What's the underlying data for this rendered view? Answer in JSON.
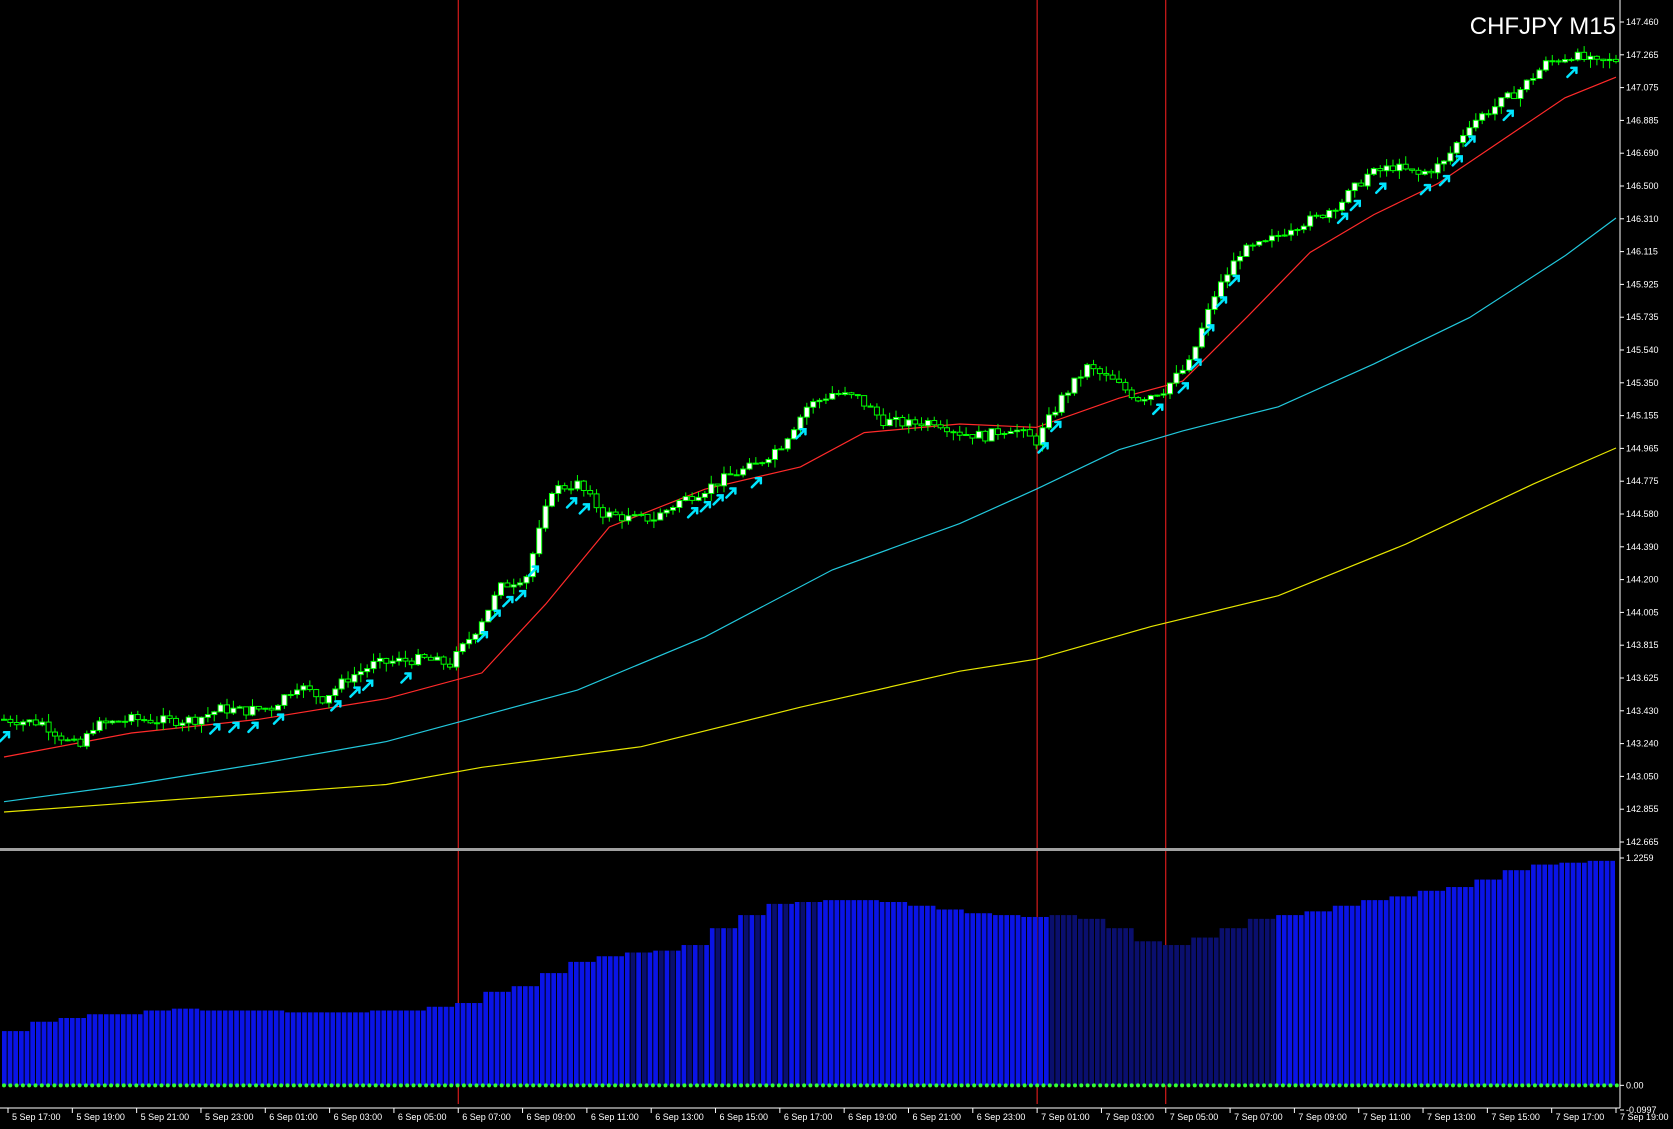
{
  "window": {
    "symbol_label": "CHFJPY M15"
  },
  "colors": {
    "background": "#000000",
    "axis": "#ffffff",
    "bull_candle": "#00ff00",
    "bull_body": "#ffffff",
    "bear_body": "#000000",
    "ma_fast": "#ff2a2a",
    "ma_mid": "#22c8dc",
    "ma_slow": "#e6e600",
    "arrow": "#00e5ff",
    "vline": "#ff2020",
    "histogram": "#0a14e6",
    "histogram_dim": "#0a0f6e",
    "zero_dots": "#33ff33",
    "separator": "#a0a0a0"
  },
  "chart_data": [
    {
      "type": "candlestick",
      "title": "CHFJPY M15",
      "price_axis_ticks": [
        "147.460",
        "147.265",
        "147.075",
        "146.885",
        "146.690",
        "146.500",
        "146.310",
        "146.115",
        "145.925",
        "145.735",
        "145.540",
        "145.350",
        "145.155",
        "144.965",
        "144.775",
        "144.580",
        "144.390",
        "144.200",
        "144.005",
        "143.815",
        "143.625",
        "143.430",
        "143.240",
        "143.050",
        "142.855",
        "142.665"
      ],
      "ylim": [
        142.665,
        147.5
      ],
      "time_axis_labels": [
        "5 Sep 17:00",
        "5 Sep 19:00",
        "5 Sep 21:00",
        "5 Sep 23:00",
        "6 Sep 01:00",
        "6 Sep 03:00",
        "6 Sep 05:00",
        "6 Sep 07:00",
        "6 Sep 09:00",
        "6 Sep 11:00",
        "6 Sep 13:00",
        "6 Sep 15:00",
        "6 Sep 17:00",
        "6 Sep 19:00",
        "6 Sep 21:00",
        "6 Sep 23:00",
        "7 Sep 01:00",
        "7 Sep 03:00",
        "7 Sep 05:00",
        "7 Sep 07:00",
        "7 Sep 09:00",
        "7 Sep 11:00",
        "7 Sep 13:00",
        "7 Sep 15:00",
        "7 Sep 17:00",
        "7 Sep 19:00"
      ],
      "close_path": [
        [
          0,
          143.38
        ],
        [
          6,
          143.36
        ],
        [
          10,
          143.25
        ],
        [
          12,
          143.22
        ],
        [
          14,
          143.34
        ],
        [
          20,
          143.38
        ],
        [
          26,
          143.37
        ],
        [
          30,
          143.38
        ],
        [
          34,
          143.44
        ],
        [
          38,
          143.43
        ],
        [
          42,
          143.45
        ],
        [
          46,
          143.58
        ],
        [
          50,
          143.5
        ],
        [
          54,
          143.62
        ],
        [
          58,
          143.7
        ],
        [
          62,
          143.72
        ],
        [
          66,
          143.73
        ],
        [
          70,
          143.7
        ],
        [
          74,
          143.9
        ],
        [
          78,
          144.15
        ],
        [
          82,
          144.22
        ],
        [
          86,
          144.72
        ],
        [
          90,
          144.75
        ],
        [
          94,
          144.58
        ],
        [
          98,
          144.55
        ],
        [
          102,
          144.55
        ],
        [
          106,
          144.65
        ],
        [
          110,
          144.72
        ],
        [
          114,
          144.8
        ],
        [
          118,
          144.86
        ],
        [
          122,
          144.98
        ],
        [
          126,
          145.2
        ],
        [
          130,
          145.28
        ],
        [
          134,
          145.25
        ],
        [
          138,
          145.12
        ],
        [
          142,
          145.1
        ],
        [
          146,
          145.12
        ],
        [
          150,
          145.05
        ],
        [
          154,
          145.03
        ],
        [
          158,
          145.08
        ],
        [
          162,
          145.0
        ],
        [
          166,
          145.25
        ],
        [
          170,
          145.43
        ],
        [
          174,
          145.35
        ],
        [
          178,
          145.25
        ],
        [
          182,
          145.3
        ],
        [
          186,
          145.45
        ],
        [
          190,
          145.85
        ],
        [
          194,
          146.1
        ],
        [
          198,
          146.15
        ],
        [
          202,
          146.25
        ],
        [
          206,
          146.3
        ],
        [
          210,
          146.4
        ],
        [
          214,
          146.55
        ],
        [
          218,
          146.6
        ],
        [
          222,
          146.55
        ],
        [
          226,
          146.62
        ],
        [
          230,
          146.85
        ],
        [
          234,
          146.95
        ],
        [
          238,
          147.05
        ],
        [
          242,
          147.2
        ],
        [
          246,
          147.25
        ],
        [
          250,
          147.2
        ],
        [
          253,
          147.22
        ]
      ],
      "signal_arrows_bar_index": [
        0,
        33,
        36,
        39,
        43,
        52,
        55,
        57,
        63,
        75,
        77,
        79,
        81,
        83,
        89,
        91,
        108,
        110,
        112,
        114,
        118,
        125,
        163,
        165,
        181,
        185,
        187,
        189,
        191,
        193,
        210,
        212,
        216,
        223,
        226,
        228,
        230,
        236,
        246
      ],
      "vertical_markers_time": [
        "6 Sep 07:00",
        "7 Sep 01:00",
        "7 Sep 05:00"
      ],
      "moving_averages": [
        {
          "color": "#ff2a2a",
          "values": [
            [
              0,
              143.16
            ],
            [
              20,
              143.3
            ],
            [
              40,
              143.38
            ],
            [
              60,
              143.5
            ],
            [
              75,
              143.65
            ],
            [
              85,
              144.05
            ],
            [
              95,
              144.5
            ],
            [
              110,
              144.72
            ],
            [
              125,
              144.85
            ],
            [
              135,
              145.05
            ],
            [
              150,
              145.1
            ],
            [
              162,
              145.08
            ],
            [
              175,
              145.25
            ],
            [
              185,
              145.35
            ],
            [
              195,
              145.72
            ],
            [
              205,
              146.1
            ],
            [
              215,
              146.32
            ],
            [
              225,
              146.5
            ],
            [
              235,
              146.75
            ],
            [
              245,
              147.0
            ],
            [
              253,
              147.12
            ]
          ]
        },
        {
          "color": "#22c8dc",
          "values": [
            [
              0,
              142.9
            ],
            [
              20,
              143.0
            ],
            [
              40,
              143.12
            ],
            [
              60,
              143.25
            ],
            [
              75,
              143.4
            ],
            [
              90,
              143.55
            ],
            [
              110,
              143.86
            ],
            [
              130,
              144.25
            ],
            [
              150,
              144.52
            ],
            [
              162,
              144.72
            ],
            [
              175,
              144.95
            ],
            [
              185,
              145.06
            ],
            [
              200,
              145.2
            ],
            [
              215,
              145.45
            ],
            [
              230,
              145.72
            ],
            [
              245,
              146.08
            ],
            [
              253,
              146.3
            ]
          ]
        },
        {
          "color": "#e6e600",
          "values": [
            [
              0,
              142.84
            ],
            [
              30,
              142.92
            ],
            [
              60,
              143.0
            ],
            [
              75,
              143.1
            ],
            [
              100,
              143.22
            ],
            [
              125,
              143.45
            ],
            [
              150,
              143.66
            ],
            [
              162,
              143.73
            ],
            [
              180,
              143.92
            ],
            [
              200,
              144.1
            ],
            [
              220,
              144.4
            ],
            [
              240,
              144.75
            ],
            [
              253,
              144.96
            ]
          ]
        }
      ]
    },
    {
      "type": "bar",
      "ylim": [
        -0.0997,
        1.2259
      ],
      "axis_ticks": [
        "1.2259",
        "0.00",
        "-0.0997"
      ],
      "values_by_bar_step5": [
        0.29,
        0.34,
        0.36,
        0.38,
        0.38,
        0.4,
        0.41,
        0.4,
        0.4,
        0.4,
        0.39,
        0.39,
        0.39,
        0.4,
        0.4,
        0.42,
        0.44,
        0.5,
        0.53,
        0.6,
        0.66,
        0.69,
        0.71,
        0.72,
        0.75,
        0.84,
        0.91,
        0.97,
        0.98,
        0.99,
        0.99,
        0.98,
        0.96,
        0.94,
        0.92,
        0.91,
        0.9,
        0.91,
        0.89,
        0.84,
        0.77,
        0.75,
        0.79,
        0.84,
        0.89,
        0.91,
        0.93,
        0.96,
        0.99,
        1.01,
        1.04,
        1.06,
        1.1,
        1.15,
        1.18,
        1.19,
        1.2
      ]
    }
  ]
}
